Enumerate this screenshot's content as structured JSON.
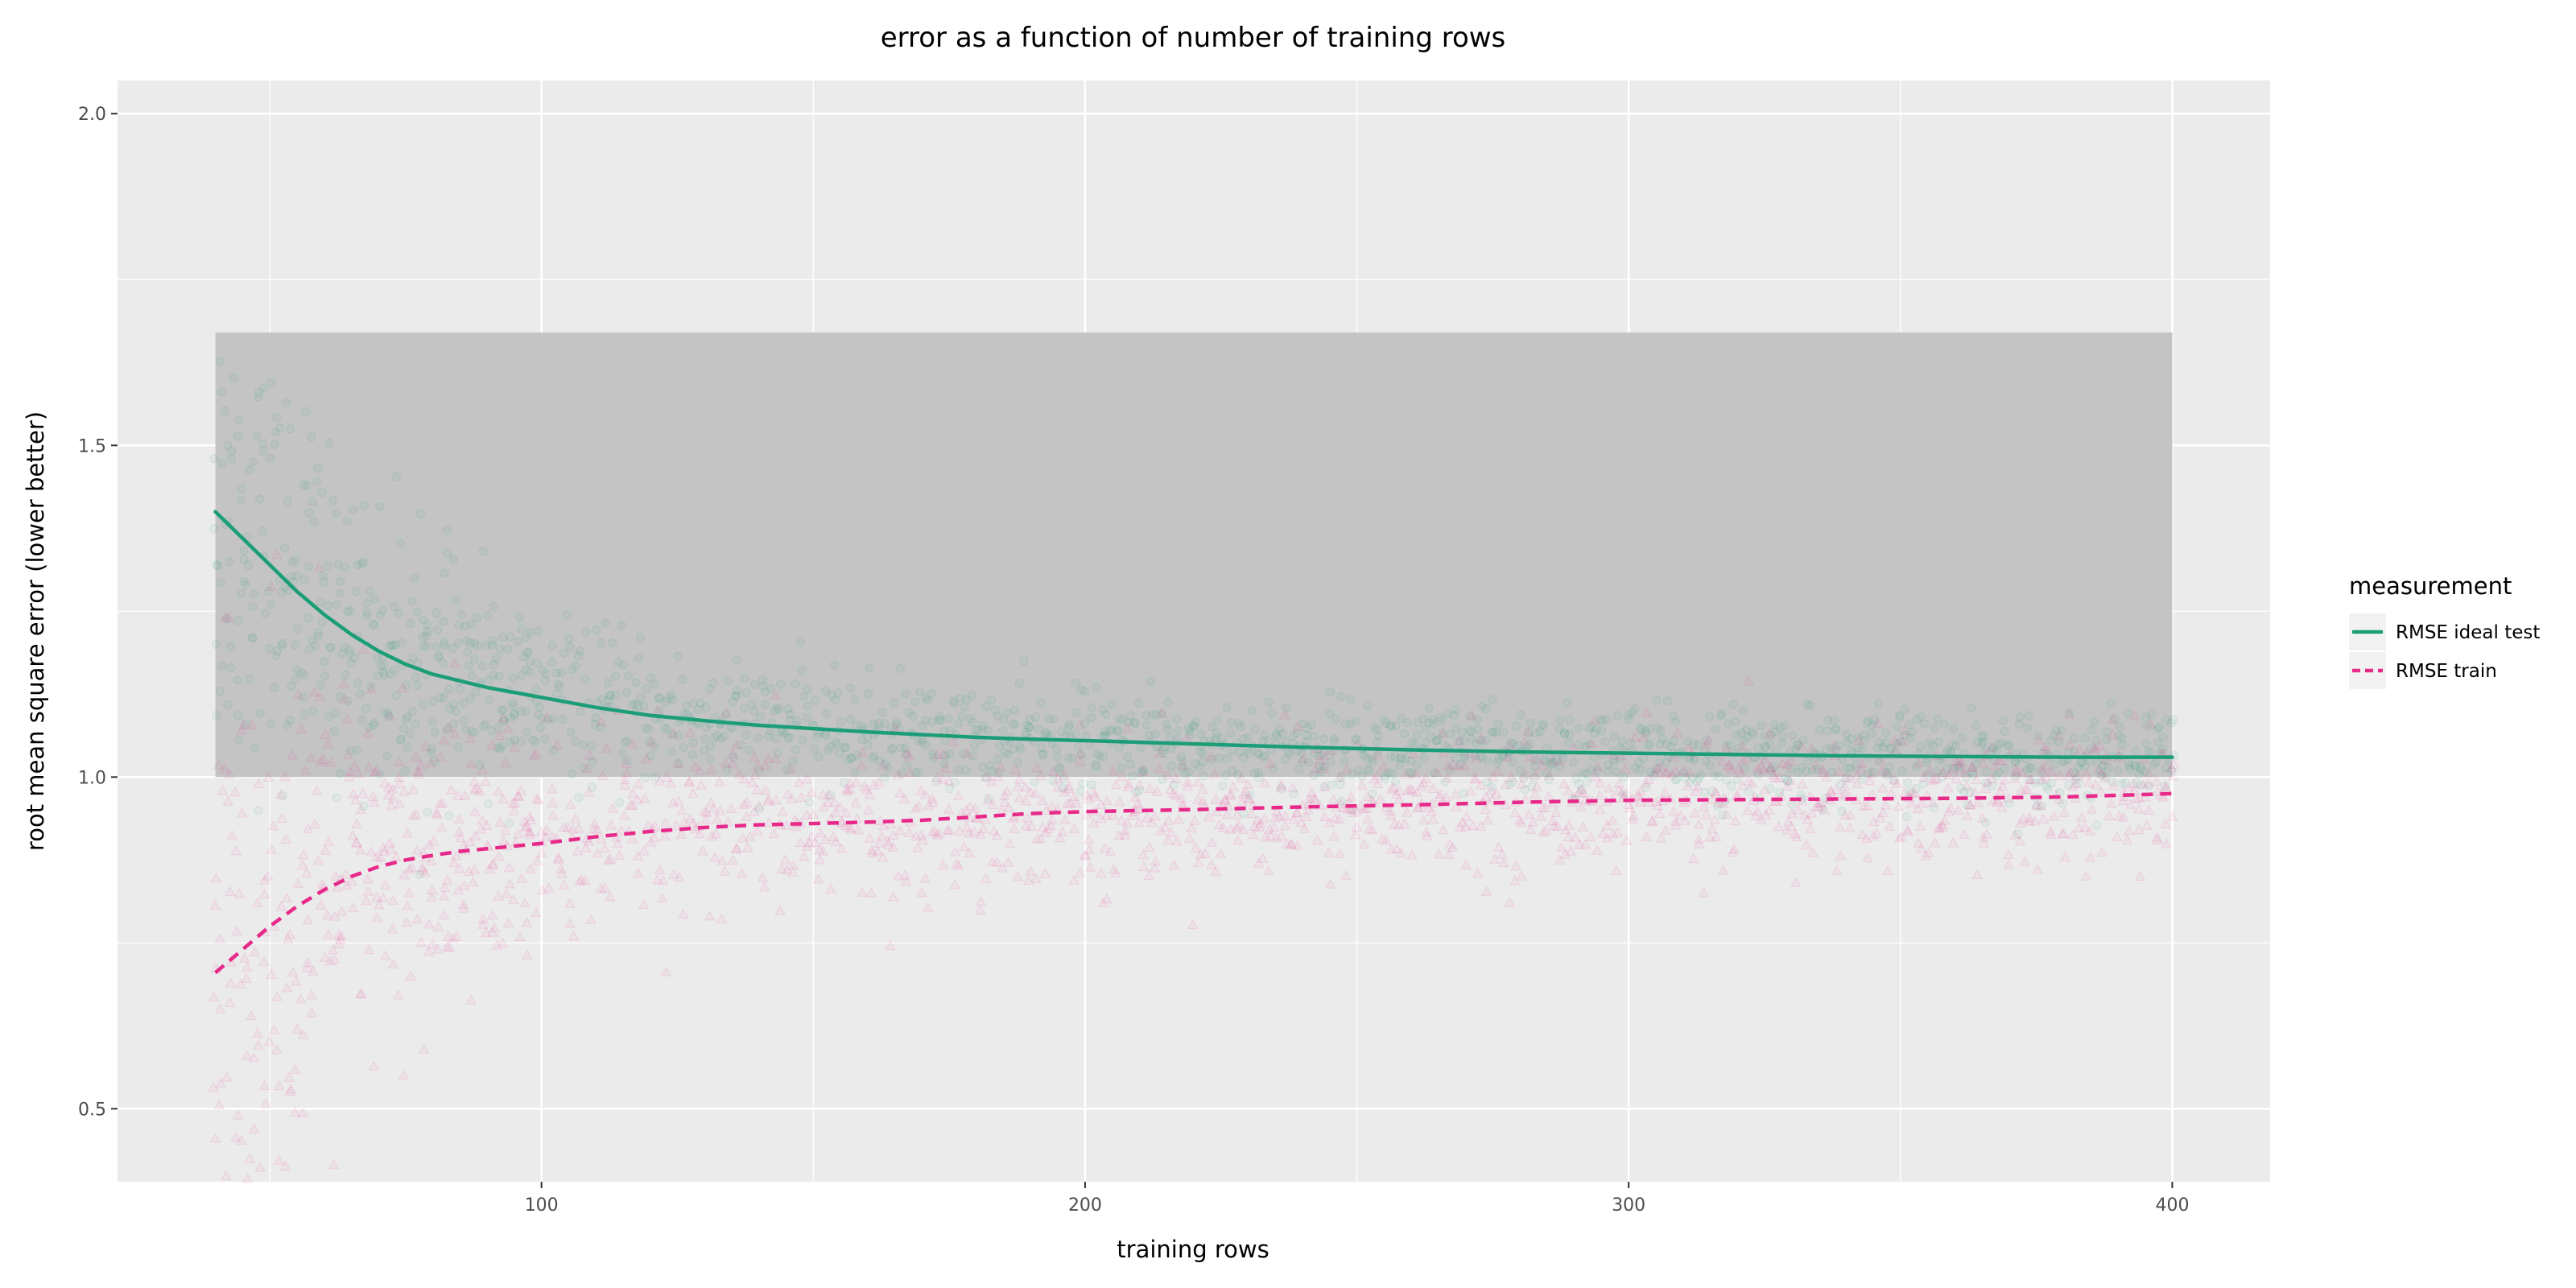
{
  "chart_data": {
    "type": "scatter",
    "title": "error as a function of number of training rows",
    "xlabel": "training rows",
    "ylabel": "root mean square error (lower better)",
    "xlim": [
      22,
      418
    ],
    "ylim": [
      0.39,
      2.05
    ],
    "x_ticks": [
      100,
      200,
      300,
      400
    ],
    "y_ticks": [
      0.5,
      1.0,
      1.5,
      2.0
    ],
    "x_tick_labels": [
      "100",
      "200",
      "300",
      "400"
    ],
    "y_tick_labels": [
      "0.5",
      "1.0",
      "1.5",
      "2.0"
    ],
    "grid": true,
    "legend": {
      "title": "measurement",
      "position": "right",
      "entries": [
        "RMSE ideal test",
        "RMSE train"
      ]
    },
    "shaded_region": {
      "x": [
        40,
        400
      ],
      "y": [
        1.0,
        1.67
      ],
      "color": "#c4c4c4"
    },
    "series": [
      {
        "name": "RMSE ideal test",
        "color": "#1b9e77",
        "line_style": "solid",
        "point_shape": "circle",
        "smooth_x": [
          40,
          45,
          50,
          55,
          60,
          65,
          70,
          75,
          80,
          85,
          90,
          100,
          110,
          120,
          130,
          140,
          150,
          160,
          170,
          180,
          190,
          200,
          220,
          240,
          260,
          280,
          300,
          320,
          340,
          360,
          380,
          400
        ],
        "smooth_y": [
          1.4,
          1.36,
          1.32,
          1.28,
          1.245,
          1.215,
          1.19,
          1.17,
          1.155,
          1.145,
          1.135,
          1.12,
          1.105,
          1.093,
          1.085,
          1.078,
          1.073,
          1.068,
          1.064,
          1.06,
          1.057,
          1.055,
          1.05,
          1.045,
          1.041,
          1.038,
          1.036,
          1.034,
          1.032,
          1.031,
          1.03,
          1.03
        ],
        "scatter_spread": 0.035
      },
      {
        "name": "RMSE train",
        "color": "#e7298a",
        "line_style": "dashed",
        "point_shape": "triangle",
        "smooth_x": [
          40,
          45,
          50,
          55,
          60,
          65,
          70,
          75,
          80,
          85,
          90,
          100,
          110,
          120,
          130,
          140,
          150,
          160,
          170,
          180,
          190,
          200,
          220,
          240,
          260,
          280,
          300,
          320,
          340,
          360,
          380,
          400
        ],
        "smooth_y": [
          0.705,
          0.74,
          0.775,
          0.805,
          0.83,
          0.85,
          0.865,
          0.875,
          0.882,
          0.888,
          0.892,
          0.9,
          0.91,
          0.918,
          0.924,
          0.928,
          0.93,
          0.932,
          0.935,
          0.94,
          0.945,
          0.948,
          0.951,
          0.955,
          0.958,
          0.962,
          0.965,
          0.966,
          0.967,
          0.968,
          0.97,
          0.975
        ],
        "scatter_spread": 0.05
      }
    ]
  }
}
